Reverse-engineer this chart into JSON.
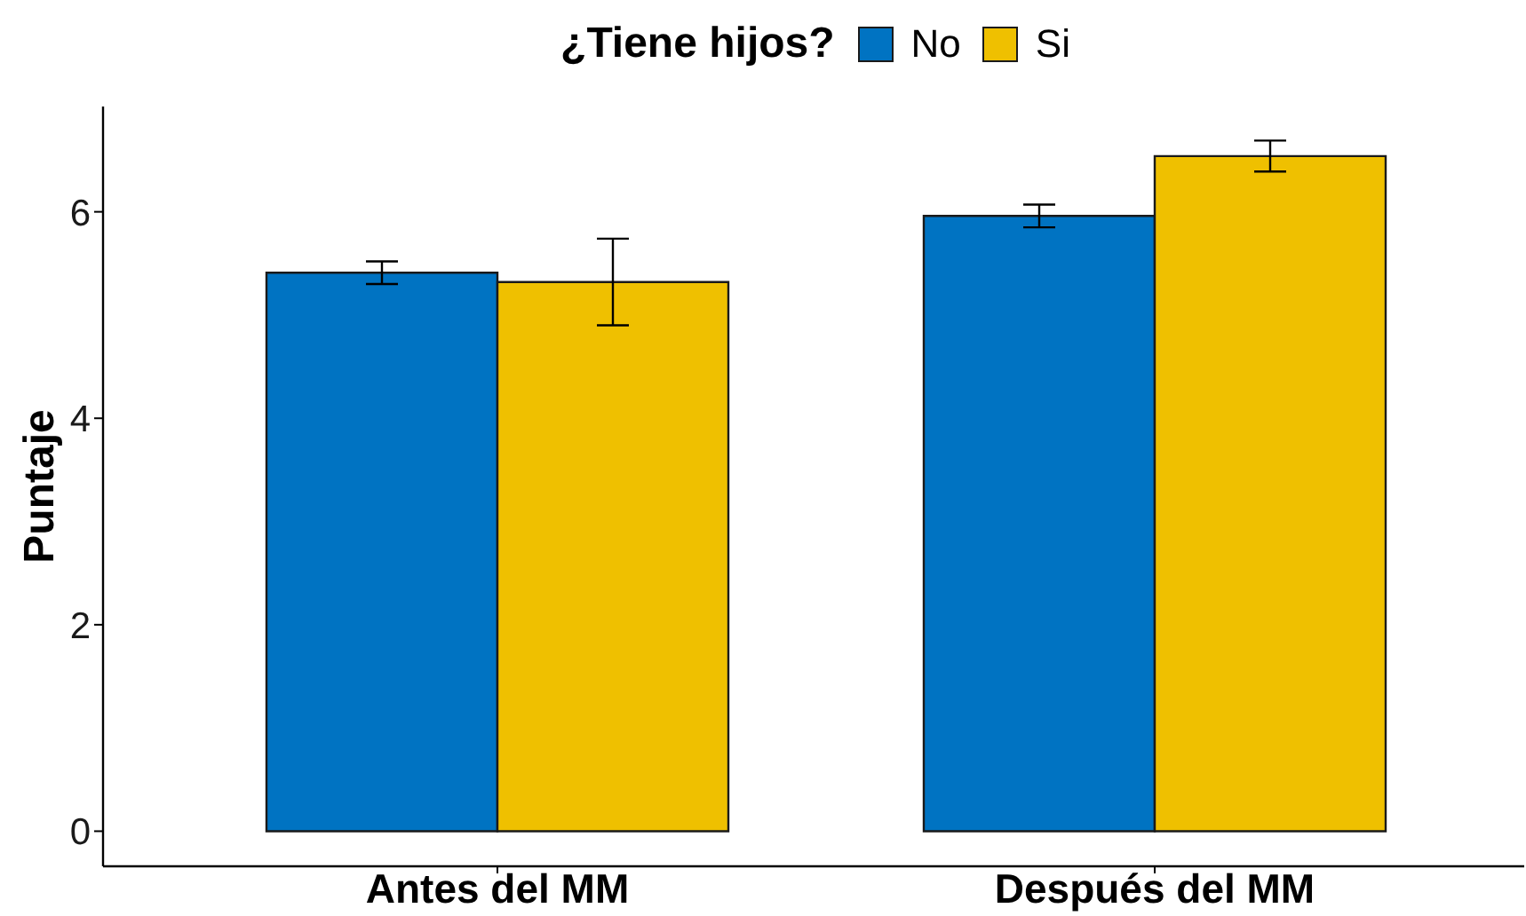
{
  "chart_data": {
    "type": "bar",
    "ylabel": "Puntaje",
    "legend_title": "¿Tiene hijos?",
    "categories": [
      "Antes del MM",
      "Después del MM"
    ],
    "series": [
      {
        "name": "No",
        "color": "#0073c2",
        "values": [
          5.41,
          5.96
        ],
        "errors": [
          0.11,
          0.11
        ]
      },
      {
        "name": "Si",
        "color": "#efc000",
        "values": [
          5.32,
          6.54
        ],
        "errors": [
          0.42,
          0.15
        ]
      }
    ],
    "ylim": [
      -0.34,
      7.02
    ],
    "yticks": [
      0,
      2,
      4,
      6
    ],
    "grid": false,
    "legend": "top"
  }
}
